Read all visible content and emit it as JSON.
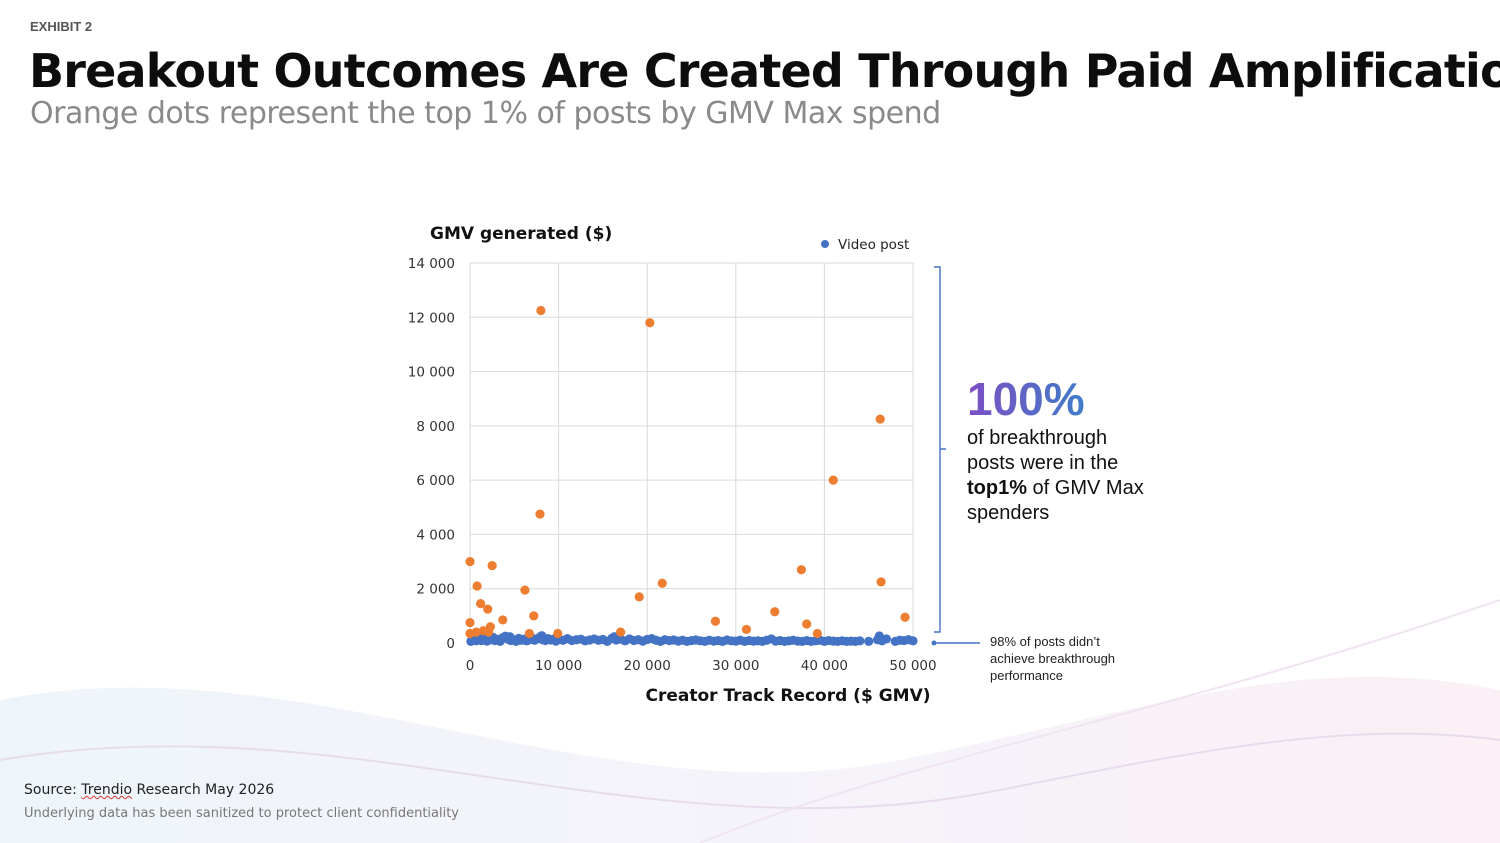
{
  "header": {
    "exhibit": "EXHIBIT 2",
    "title": "Breakout Outcomes Are Created Through Paid Amplification",
    "subtitle": "Orange dots represent the top 1% of posts by GMV Max spend"
  },
  "callout": {
    "percent": "100%",
    "line1": "of breakthrough",
    "line2": "posts were in the",
    "line3_bold": "top1%",
    "line3_rest": " of GMV Max",
    "line4": "spenders"
  },
  "note": {
    "line1": "98% of posts didn’t",
    "line2": "achieve breakthrough",
    "line3": "performance"
  },
  "footer": {
    "source_prefix": "Source: ",
    "source_org": "Trendio",
    "source_rest": " Research May 2026",
    "disclaimer": "Underlying data has been sanitized to protect client confidentiality"
  },
  "colors": {
    "blue": "#4472c4",
    "orange": "#ed7d31",
    "grid": "#d9d9d9",
    "bracket": "#4472c4"
  },
  "chart_data": {
    "type": "scatter",
    "title": "",
    "ylabel": "GMV generated ($)",
    "xlabel": "Creator Track Record ($ GMV)",
    "xlim": [
      0,
      50000
    ],
    "ylim": [
      0,
      14000
    ],
    "xticks": [
      0,
      10000,
      20000,
      30000,
      40000,
      50000
    ],
    "yticks": [
      0,
      2000,
      4000,
      6000,
      8000,
      10000,
      12000,
      14000
    ],
    "xtick_labels": [
      "0",
      "10 000",
      "20 000",
      "30 000",
      "40 000",
      "50 000"
    ],
    "ytick_labels": [
      "0",
      "2 000",
      "4 000",
      "6 000",
      "8 000",
      "10 000",
      "12 000",
      "14 000"
    ],
    "grid": true,
    "legend": {
      "position": "top-right",
      "entries": [
        "Video post"
      ]
    },
    "series": [
      {
        "name": "Video post",
        "color": "#4472c4",
        "points": [
          [
            100,
            60
          ],
          [
            400,
            150
          ],
          [
            700,
            80
          ],
          [
            1000,
            120
          ],
          [
            1300,
            90
          ],
          [
            1600,
            180
          ],
          [
            1900,
            70
          ],
          [
            2200,
            110
          ],
          [
            2500,
            160
          ],
          [
            2800,
            90
          ],
          [
            3100,
            130
          ],
          [
            3400,
            60
          ],
          [
            3700,
            200
          ],
          [
            4000,
            250
          ],
          [
            4300,
            140
          ],
          [
            4600,
            90
          ],
          [
            4900,
            120
          ],
          [
            5200,
            60
          ],
          [
            5500,
            170
          ],
          [
            5800,
            100
          ],
          [
            6100,
            140
          ],
          [
            6400,
            80
          ],
          [
            6700,
            120
          ],
          [
            7000,
            190
          ],
          [
            7300,
            100
          ],
          [
            7600,
            150
          ],
          [
            7900,
            220
          ],
          [
            8200,
            120
          ],
          [
            8500,
            90
          ],
          [
            8800,
            160
          ],
          [
            9100,
            110
          ],
          [
            9400,
            140
          ],
          [
            9700,
            70
          ],
          [
            10000,
            130
          ],
          [
            10500,
            100
          ],
          [
            11000,
            160
          ],
          [
            11500,
            90
          ],
          [
            12000,
            120
          ],
          [
            12500,
            140
          ],
          [
            13000,
            80
          ],
          [
            13500,
            110
          ],
          [
            14000,
            150
          ],
          [
            14500,
            100
          ],
          [
            15000,
            130
          ],
          [
            15500,
            60
          ],
          [
            16000,
            170
          ],
          [
            16500,
            110
          ],
          [
            17000,
            140
          ],
          [
            17500,
            80
          ],
          [
            18000,
            150
          ],
          [
            18500,
            90
          ],
          [
            19000,
            120
          ],
          [
            19500,
            70
          ],
          [
            20000,
            130
          ],
          [
            20500,
            160
          ],
          [
            21000,
            100
          ],
          [
            21500,
            60
          ],
          [
            22000,
            120
          ],
          [
            22500,
            90
          ],
          [
            23000,
            110
          ],
          [
            23500,
            70
          ],
          [
            24000,
            100
          ],
          [
            24500,
            60
          ],
          [
            25000,
            90
          ],
          [
            25500,
            110
          ],
          [
            26000,
            80
          ],
          [
            26500,
            60
          ],
          [
            27000,
            100
          ],
          [
            27500,
            70
          ],
          [
            28000,
            90
          ],
          [
            28500,
            60
          ],
          [
            29000,
            110
          ],
          [
            29500,
            80
          ],
          [
            30000,
            70
          ],
          [
            30500,
            100
          ],
          [
            31000,
            60
          ],
          [
            31500,
            90
          ],
          [
            32000,
            70
          ],
          [
            32500,
            80
          ],
          [
            33000,
            60
          ],
          [
            33500,
            100
          ],
          [
            34000,
            150
          ],
          [
            34500,
            70
          ],
          [
            35000,
            90
          ],
          [
            35500,
            60
          ],
          [
            36000,
            80
          ],
          [
            36500,
            100
          ],
          [
            37000,
            70
          ],
          [
            37500,
            60
          ],
          [
            38000,
            90
          ],
          [
            38500,
            60
          ],
          [
            39000,
            80
          ],
          [
            39500,
            100
          ],
          [
            40000,
            60
          ],
          [
            40500,
            90
          ],
          [
            41000,
            70
          ],
          [
            41500,
            60
          ],
          [
            42000,
            80
          ],
          [
            42500,
            60
          ],
          [
            43000,
            70
          ],
          [
            43500,
            60
          ],
          [
            44000,
            80
          ],
          [
            45000,
            60
          ],
          [
            46000,
            120
          ],
          [
            46200,
            260
          ],
          [
            46500,
            80
          ],
          [
            47000,
            150
          ],
          [
            48000,
            60
          ],
          [
            48500,
            100
          ],
          [
            49000,
            90
          ],
          [
            49500,
            120
          ],
          [
            50000,
            80
          ],
          [
            300,
            240
          ],
          [
            800,
            200
          ],
          [
            1500,
            230
          ],
          [
            2600,
            210
          ],
          [
            4500,
            230
          ],
          [
            8100,
            270
          ],
          [
            9800,
            200
          ],
          [
            16300,
            230
          ]
        ]
      },
      {
        "name": "",
        "color": "#ed7d31",
        "points": [
          [
            8000,
            12250
          ],
          [
            20300,
            11800
          ],
          [
            46300,
            8250
          ],
          [
            41000,
            6000
          ],
          [
            7900,
            4750
          ],
          [
            0,
            3000
          ],
          [
            2500,
            2850
          ],
          [
            800,
            2100
          ],
          [
            6200,
            1950
          ],
          [
            21700,
            2200
          ],
          [
            46400,
            2250
          ],
          [
            37400,
            2700
          ],
          [
            19100,
            1700
          ],
          [
            1200,
            1450
          ],
          [
            2000,
            1250
          ],
          [
            7200,
            1000
          ],
          [
            3700,
            850
          ],
          [
            0,
            750
          ],
          [
            27700,
            800
          ],
          [
            34400,
            1150
          ],
          [
            49100,
            950
          ],
          [
            38000,
            700
          ],
          [
            31200,
            500
          ],
          [
            2300,
            600
          ],
          [
            1500,
            450
          ],
          [
            700,
            400
          ],
          [
            0,
            350
          ],
          [
            6700,
            350
          ],
          [
            9900,
            350
          ],
          [
            17000,
            400
          ],
          [
            39200,
            350
          ],
          [
            2100,
            400
          ]
        ]
      }
    ]
  }
}
